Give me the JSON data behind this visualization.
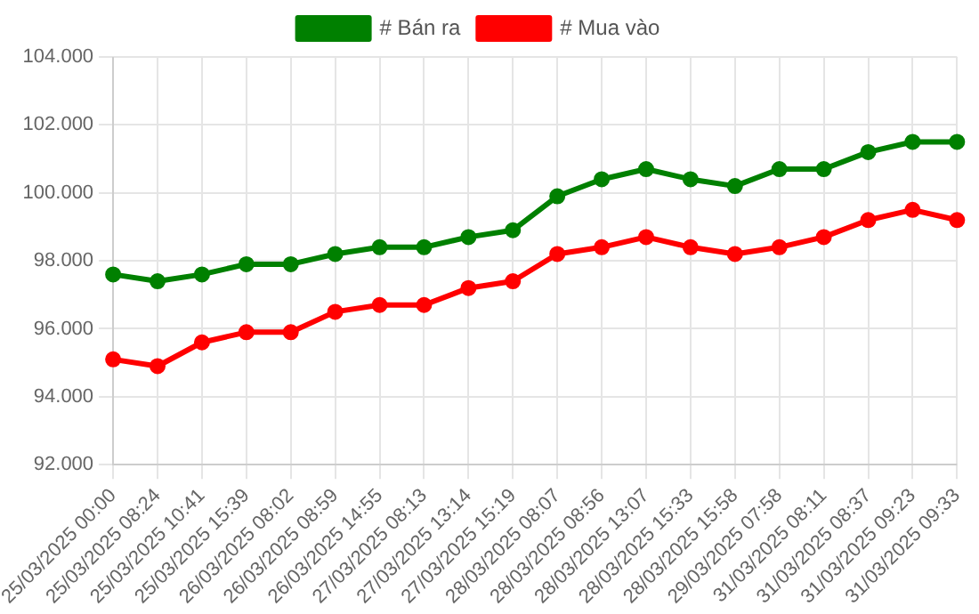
{
  "chart_data": {
    "type": "line",
    "categories": [
      "25/03/2025 00:00",
      "25/03/2025 08:24",
      "25/03/2025 10:41",
      "25/03/2025 15:39",
      "26/03/2025 08:02",
      "26/03/2025 08:59",
      "26/03/2025 14:55",
      "27/03/2025 08:13",
      "27/03/2025 13:14",
      "27/03/2025 15:19",
      "28/03/2025 08:07",
      "28/03/2025 08:56",
      "28/03/2025 13:07",
      "28/03/2025 15:33",
      "28/03/2025 15:58",
      "29/03/2025 07:58",
      "31/03/2025 08:11",
      "31/03/2025 08:37",
      "31/03/2025 09:23",
      "31/03/2025 09:33"
    ],
    "series": [
      {
        "name": "# Bán ra",
        "color": "#008000",
        "values": [
          97600,
          97400,
          97600,
          97900,
          97900,
          98200,
          98400,
          98400,
          98700,
          98900,
          99900,
          100400,
          100700,
          100400,
          100200,
          100700,
          100700,
          101200,
          101500,
          101500
        ]
      },
      {
        "name": "# Mua vào",
        "color": "#ff0000",
        "values": [
          95100,
          94900,
          95600,
          95900,
          95900,
          96500,
          96700,
          96700,
          97200,
          97400,
          98200,
          98400,
          98700,
          98400,
          98200,
          98400,
          98700,
          99200,
          99500,
          99200
        ]
      }
    ],
    "ylim": [
      92000,
      104000
    ],
    "yticks": [
      {
        "value": 92000,
        "label": "92.000"
      },
      {
        "value": 94000,
        "label": "94.000"
      },
      {
        "value": 96000,
        "label": "96.000"
      },
      {
        "value": 98000,
        "label": "98.000"
      },
      {
        "value": 100000,
        "label": "100.000"
      },
      {
        "value": 102000,
        "label": "102.000"
      },
      {
        "value": 104000,
        "label": "104.000"
      }
    ],
    "grid": true,
    "legend": "top",
    "marker": "circle",
    "line_style": "solid"
  }
}
